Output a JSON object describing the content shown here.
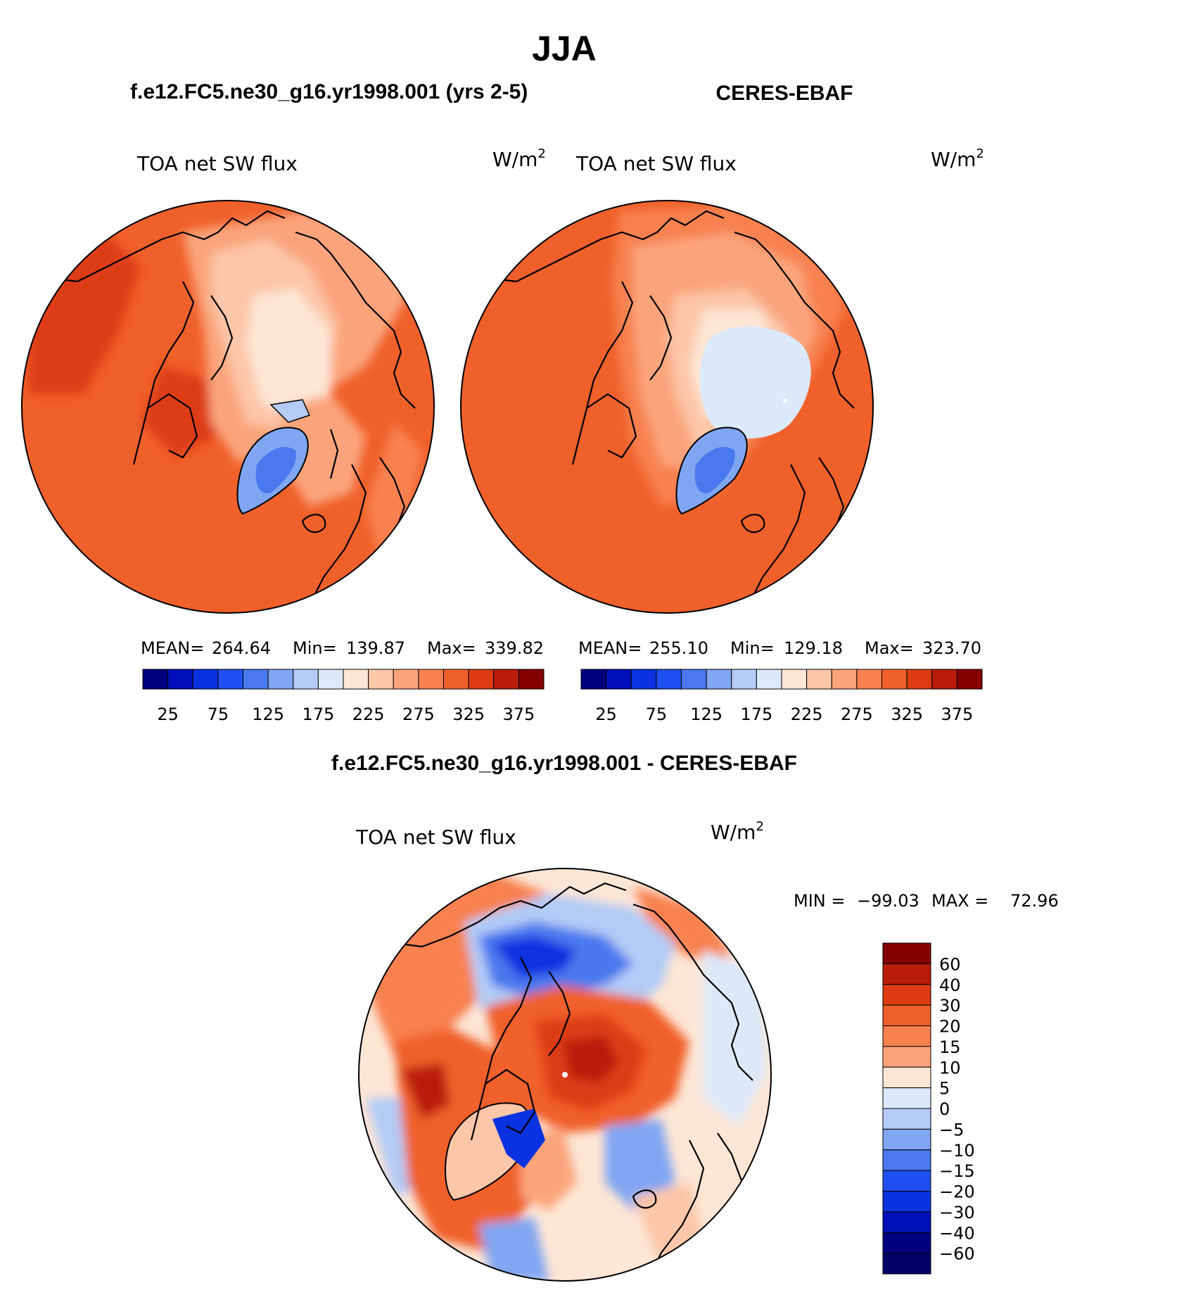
{
  "figure": {
    "season": "JJA",
    "panels": [
      {
        "title": "f.e12.FC5.ne30_g16.yr1998.001 (yrs 2-5)",
        "variable": "TOA net SW flux",
        "units": "W/m",
        "units_sup": "2",
        "stats": {
          "mean_label": "MEAN=",
          "mean": "264.64",
          "min_label": "Min=",
          "min": "139.87",
          "max_label": "Max=",
          "max": "339.82"
        },
        "colorbar_labels": [
          "25",
          "75",
          "125",
          "175",
          "225",
          "275",
          "325",
          "375"
        ]
      },
      {
        "title": "CERES-EBAF",
        "variable": "TOA net SW flux",
        "units": "W/m",
        "units_sup": "2",
        "stats": {
          "mean_label": "MEAN=",
          "mean": "255.10",
          "min_label": "Min=",
          "min": "129.18",
          "max_label": "Max=",
          "max": "323.70"
        },
        "colorbar_labels": [
          "25",
          "75",
          "125",
          "175",
          "225",
          "275",
          "325",
          "375"
        ]
      }
    ],
    "diff": {
      "title": "f.e12.FC5.ne30_g16.yr1998.001 - CERES-EBAF",
      "variable": "TOA net SW flux",
      "units": "W/m",
      "units_sup": "2",
      "stats": {
        "min_label": "MIN =",
        "min": "−99.03",
        "max_label": "MAX =",
        "max": "72.96"
      },
      "colorbar_labels": [
        "60",
        "40",
        "30",
        "20",
        "15",
        "10",
        "5",
        "0",
        "−5",
        "−10",
        "−15",
        "−20",
        "−30",
        "−40",
        "−60"
      ]
    }
  },
  "colors": {
    "abs_scale": [
      "#00007f",
      "#0010b8",
      "#0a32e0",
      "#1f4ff0",
      "#4a78ee",
      "#80a6f2",
      "#b3cbf6",
      "#dbe9fa",
      "#fde6d6",
      "#fcc6a8",
      "#fba47b",
      "#f8814f",
      "#f0602b",
      "#dd3c12",
      "#b91c08",
      "#850000"
    ],
    "diff_scale": [
      "#850000",
      "#b91c08",
      "#dd3c12",
      "#f0602b",
      "#f8814f",
      "#fba47b",
      "#fde6d6",
      "#dbe9fa",
      "#b3cbf6",
      "#80a6f2",
      "#4a78ee",
      "#1f4ff0",
      "#0a32e0",
      "#0010b8",
      "#00007f"
    ]
  }
}
